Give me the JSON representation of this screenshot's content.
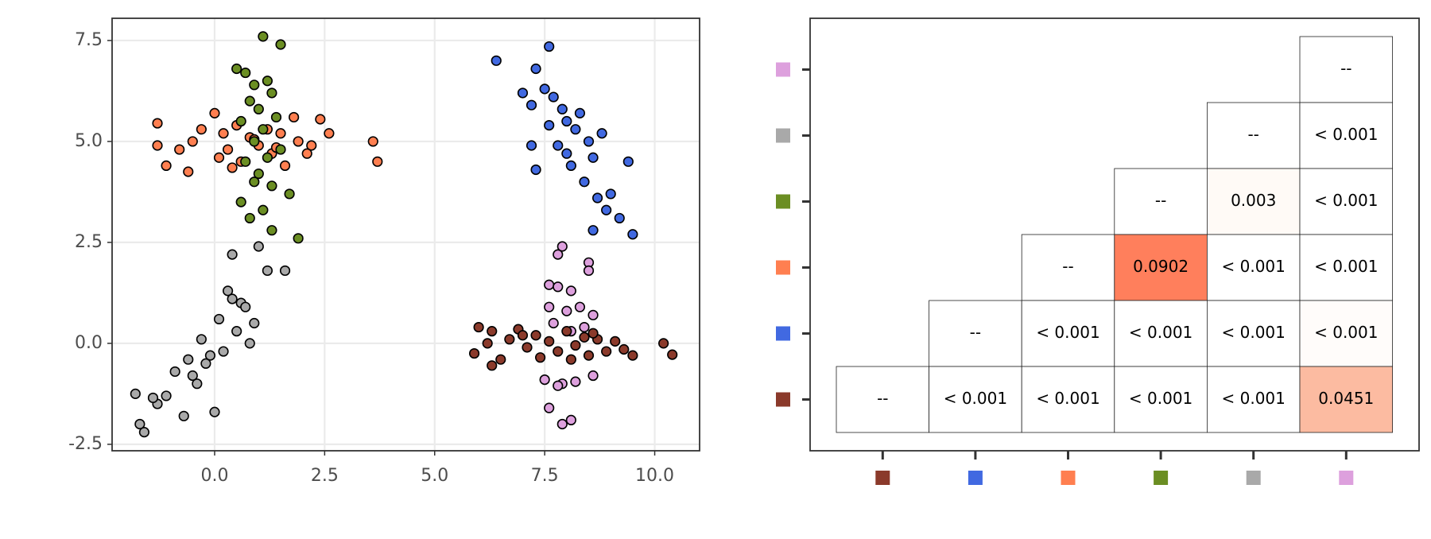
{
  "chart_data": [
    {
      "type": "scatter",
      "xlim": [
        -2.33,
        11.02
      ],
      "ylim": [
        -2.66,
        8.05
      ],
      "xticks": [
        {
          "value": 0,
          "label": "0.0"
        },
        2.5,
        {
          "value": 5,
          "label": "5.0"
        },
        7.5,
        {
          "value": 10,
          "label": "10.0"
        }
      ],
      "yticks": [
        -2.5,
        {
          "value": 0,
          "label": "0.0"
        },
        2.5,
        {
          "value": 5,
          "label": "5.0"
        },
        7.5
      ],
      "grid": true,
      "series": [
        {
          "color": "#ff7f50",
          "x": [
            -1.3,
            -1.3,
            -1.1,
            -0.8,
            -0.6,
            -0.5,
            -0.3,
            0,
            0.1,
            0.2,
            0.3,
            0.5,
            0.6,
            0.8,
            1.0,
            1.2,
            1.3,
            1.5,
            1.6,
            1.8,
            1.9,
            2.1,
            2.2,
            2.4,
            2.6,
            3.6,
            3.7,
            0.4,
            0.9,
            1.4
          ],
          "values": [
            5.45,
            4.9,
            4.4,
            4.8,
            4.25,
            5.0,
            5.3,
            5.7,
            4.6,
            5.2,
            4.8,
            5.4,
            4.5,
            5.1,
            4.9,
            5.3,
            4.7,
            5.2,
            4.4,
            5.6,
            5.0,
            4.7,
            4.9,
            5.55,
            5.2,
            5.0,
            4.5,
            4.35,
            5.05,
            4.85
          ]
        },
        {
          "color": "#6b8e23",
          "x": [
            1.1,
            1.5,
            0.5,
            0.7,
            1.2,
            0.9,
            1.3,
            0.8,
            1.0,
            1.4,
            0.6,
            1.1,
            0.9,
            1.5,
            1.2,
            0.7,
            1.0,
            1.3,
            0.6,
            1.7,
            0.8,
            1.3,
            1.9,
            0.9,
            1.1
          ],
          "values": [
            7.6,
            7.4,
            6.8,
            6.7,
            6.5,
            6.4,
            6.2,
            6.0,
            5.8,
            5.6,
            5.5,
            5.3,
            5.0,
            4.8,
            4.6,
            4.5,
            4.2,
            3.9,
            3.5,
            3.7,
            3.1,
            2.8,
            2.6,
            4.0,
            3.3
          ]
        },
        {
          "color": "#a9a9a9",
          "x": [
            -1.8,
            -1.6,
            -1.3,
            -1.1,
            -0.9,
            -0.7,
            -0.6,
            -0.4,
            -0.3,
            -0.2,
            0,
            0.1,
            0.2,
            0.3,
            0.4,
            0.5,
            0.6,
            0.8,
            1.0,
            1.2,
            1.6,
            -1.7,
            -1.4,
            -0.5,
            0.7,
            0.9,
            0.4,
            -0.1
          ],
          "values": [
            -1.25,
            -2.2,
            -1.5,
            -1.3,
            -0.7,
            -1.8,
            -0.4,
            -1.0,
            0.1,
            -0.5,
            -1.7,
            0.6,
            -0.2,
            1.3,
            2.2,
            0.3,
            1.0,
            0.0,
            2.4,
            1.8,
            1.8,
            -2.0,
            -1.35,
            -0.8,
            0.9,
            0.5,
            1.1,
            -0.3
          ]
        },
        {
          "color": "#4169e1",
          "x": [
            6.4,
            7.6,
            7.3,
            7.0,
            7.2,
            7.5,
            7.7,
            7.9,
            8.0,
            8.2,
            8.3,
            8.5,
            8.6,
            8.8,
            7.8,
            8.1,
            8.4,
            8.7,
            9.0,
            9.2,
            9.4,
            9.5,
            7.3,
            7.2,
            8.6,
            8.9,
            7.6,
            8.0
          ],
          "values": [
            7.0,
            7.35,
            6.8,
            6.2,
            5.9,
            6.3,
            6.1,
            5.8,
            5.5,
            5.3,
            5.7,
            5.0,
            4.6,
            5.2,
            4.9,
            4.4,
            4.0,
            3.6,
            3.7,
            3.1,
            4.5,
            2.7,
            4.3,
            4.9,
            2.8,
            3.3,
            5.4,
            4.7
          ]
        },
        {
          "color": "#dda0dd",
          "x": [
            7.8,
            7.9,
            8.5,
            8.5,
            7.6,
            7.8,
            8.1,
            7.6,
            8.0,
            8.3,
            8.6,
            7.7,
            8.1,
            8.4,
            7.5,
            7.9,
            8.2,
            8.6,
            7.9,
            7.6,
            7.8,
            8.1
          ],
          "values": [
            2.2,
            2.4,
            2.0,
            1.8,
            1.45,
            1.4,
            1.3,
            0.9,
            0.8,
            0.9,
            0.7,
            0.5,
            0.3,
            0.4,
            -0.9,
            -1.0,
            -0.95,
            -0.8,
            -2.0,
            -1.6,
            -1.05,
            -1.9
          ]
        },
        {
          "color": "#8b3a2b",
          "x": [
            5.9,
            6.0,
            6.2,
            6.3,
            6.5,
            6.7,
            6.9,
            7.1,
            7.3,
            7.4,
            7.6,
            7.8,
            8.0,
            8.2,
            8.4,
            8.5,
            8.7,
            8.9,
            9.1,
            9.3,
            9.5,
            10.2,
            10.4,
            6.3,
            7.0,
            8.1,
            8.6
          ],
          "values": [
            -0.25,
            0.4,
            0.0,
            0.3,
            -0.4,
            0.1,
            0.35,
            -0.1,
            0.2,
            -0.35,
            0.05,
            -0.2,
            0.3,
            -0.05,
            0.15,
            -0.3,
            0.1,
            -0.2,
            0.05,
            -0.15,
            -0.3,
            0.0,
            -0.28,
            -0.55,
            0.2,
            -0.4,
            0.25
          ]
        }
      ]
    },
    {
      "type": "matrix",
      "row_colors": [
        "#dda0dd",
        "#a9a9a9",
        "#6b8e23",
        "#ff7f50",
        "#4169e1",
        "#8b3a2b"
      ],
      "col_colors": [
        "#8b3a2b",
        "#4169e1",
        "#ff7f50",
        "#6b8e23",
        "#a9a9a9",
        "#dda0dd"
      ],
      "cells": [
        [
          null,
          null,
          null,
          null,
          null,
          {
            "text": "--"
          }
        ],
        [
          null,
          null,
          null,
          null,
          {
            "text": "--"
          },
          {
            "text": "< 0.001"
          }
        ],
        [
          null,
          null,
          null,
          {
            "text": "--"
          },
          {
            "text": "0.003",
            "fill": "#fffaf6"
          },
          {
            "text": "< 0.001"
          }
        ],
        [
          null,
          null,
          {
            "text": "--"
          },
          {
            "text": "0.0902",
            "fill": "#ff7f5c"
          },
          {
            "text": "< 0.001"
          },
          {
            "text": "< 0.001"
          }
        ],
        [
          null,
          {
            "text": "--"
          },
          {
            "text": "< 0.001"
          },
          {
            "text": "< 0.001"
          },
          {
            "text": "< 0.001"
          },
          {
            "text": "< 0.001",
            "fill": "#fffcfa"
          }
        ],
        [
          {
            "text": "--"
          },
          {
            "text": "< 0.001"
          },
          {
            "text": "< 0.001"
          },
          {
            "text": "< 0.001"
          },
          {
            "text": "< 0.001"
          },
          {
            "text": "0.0451",
            "fill": "#fcbba1"
          }
        ]
      ]
    }
  ]
}
